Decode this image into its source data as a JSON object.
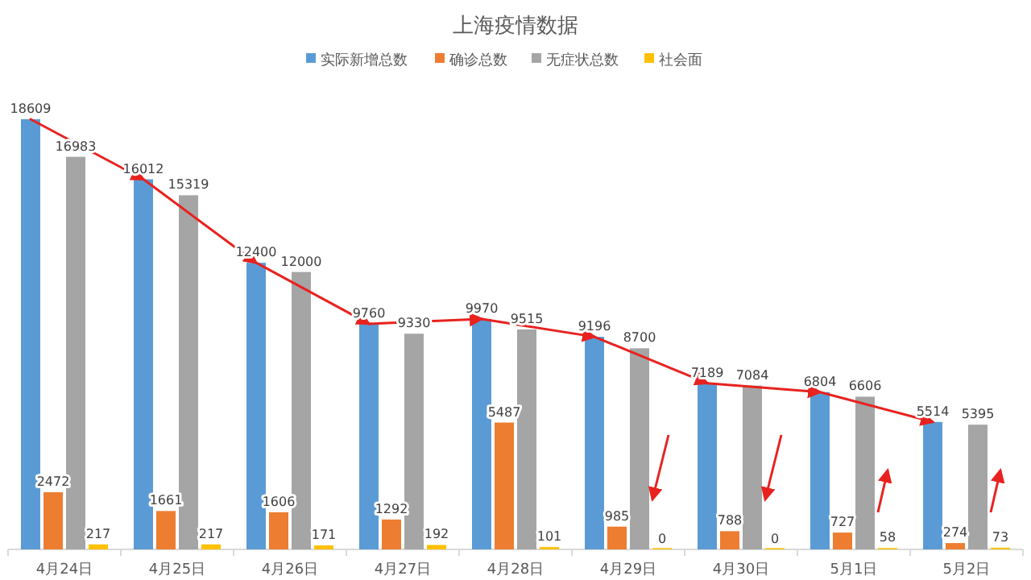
{
  "chart_data": {
    "type": "bar",
    "title": "上海疫情数据",
    "categories": [
      "4月24日",
      "4月25日",
      "4月26日",
      "4月27日",
      "4月28日",
      "4月29日",
      "4月30日",
      "5月1日",
      "5月2日"
    ],
    "series": [
      {
        "name": "实际新增总数",
        "color": "#5b9bd5",
        "values": [
          18609,
          16012,
          12400,
          9760,
          9970,
          9196,
          7189,
          6804,
          5514
        ]
      },
      {
        "name": "确诊总数",
        "color": "#ed7d31",
        "values": [
          2472,
          1661,
          1606,
          1292,
          5487,
          985,
          788,
          727,
          274
        ]
      },
      {
        "name": "无症状总数",
        "color": "#a5a5a5",
        "values": [
          16983,
          15319,
          12000,
          9330,
          9515,
          8700,
          7084,
          6606,
          5395
        ]
      },
      {
        "name": "社会面",
        "color": "#ffc000",
        "values": [
          217,
          217,
          171,
          192,
          101,
          0,
          0,
          58,
          73
        ]
      }
    ],
    "data_labels": true,
    "legend": "top"
  }
}
